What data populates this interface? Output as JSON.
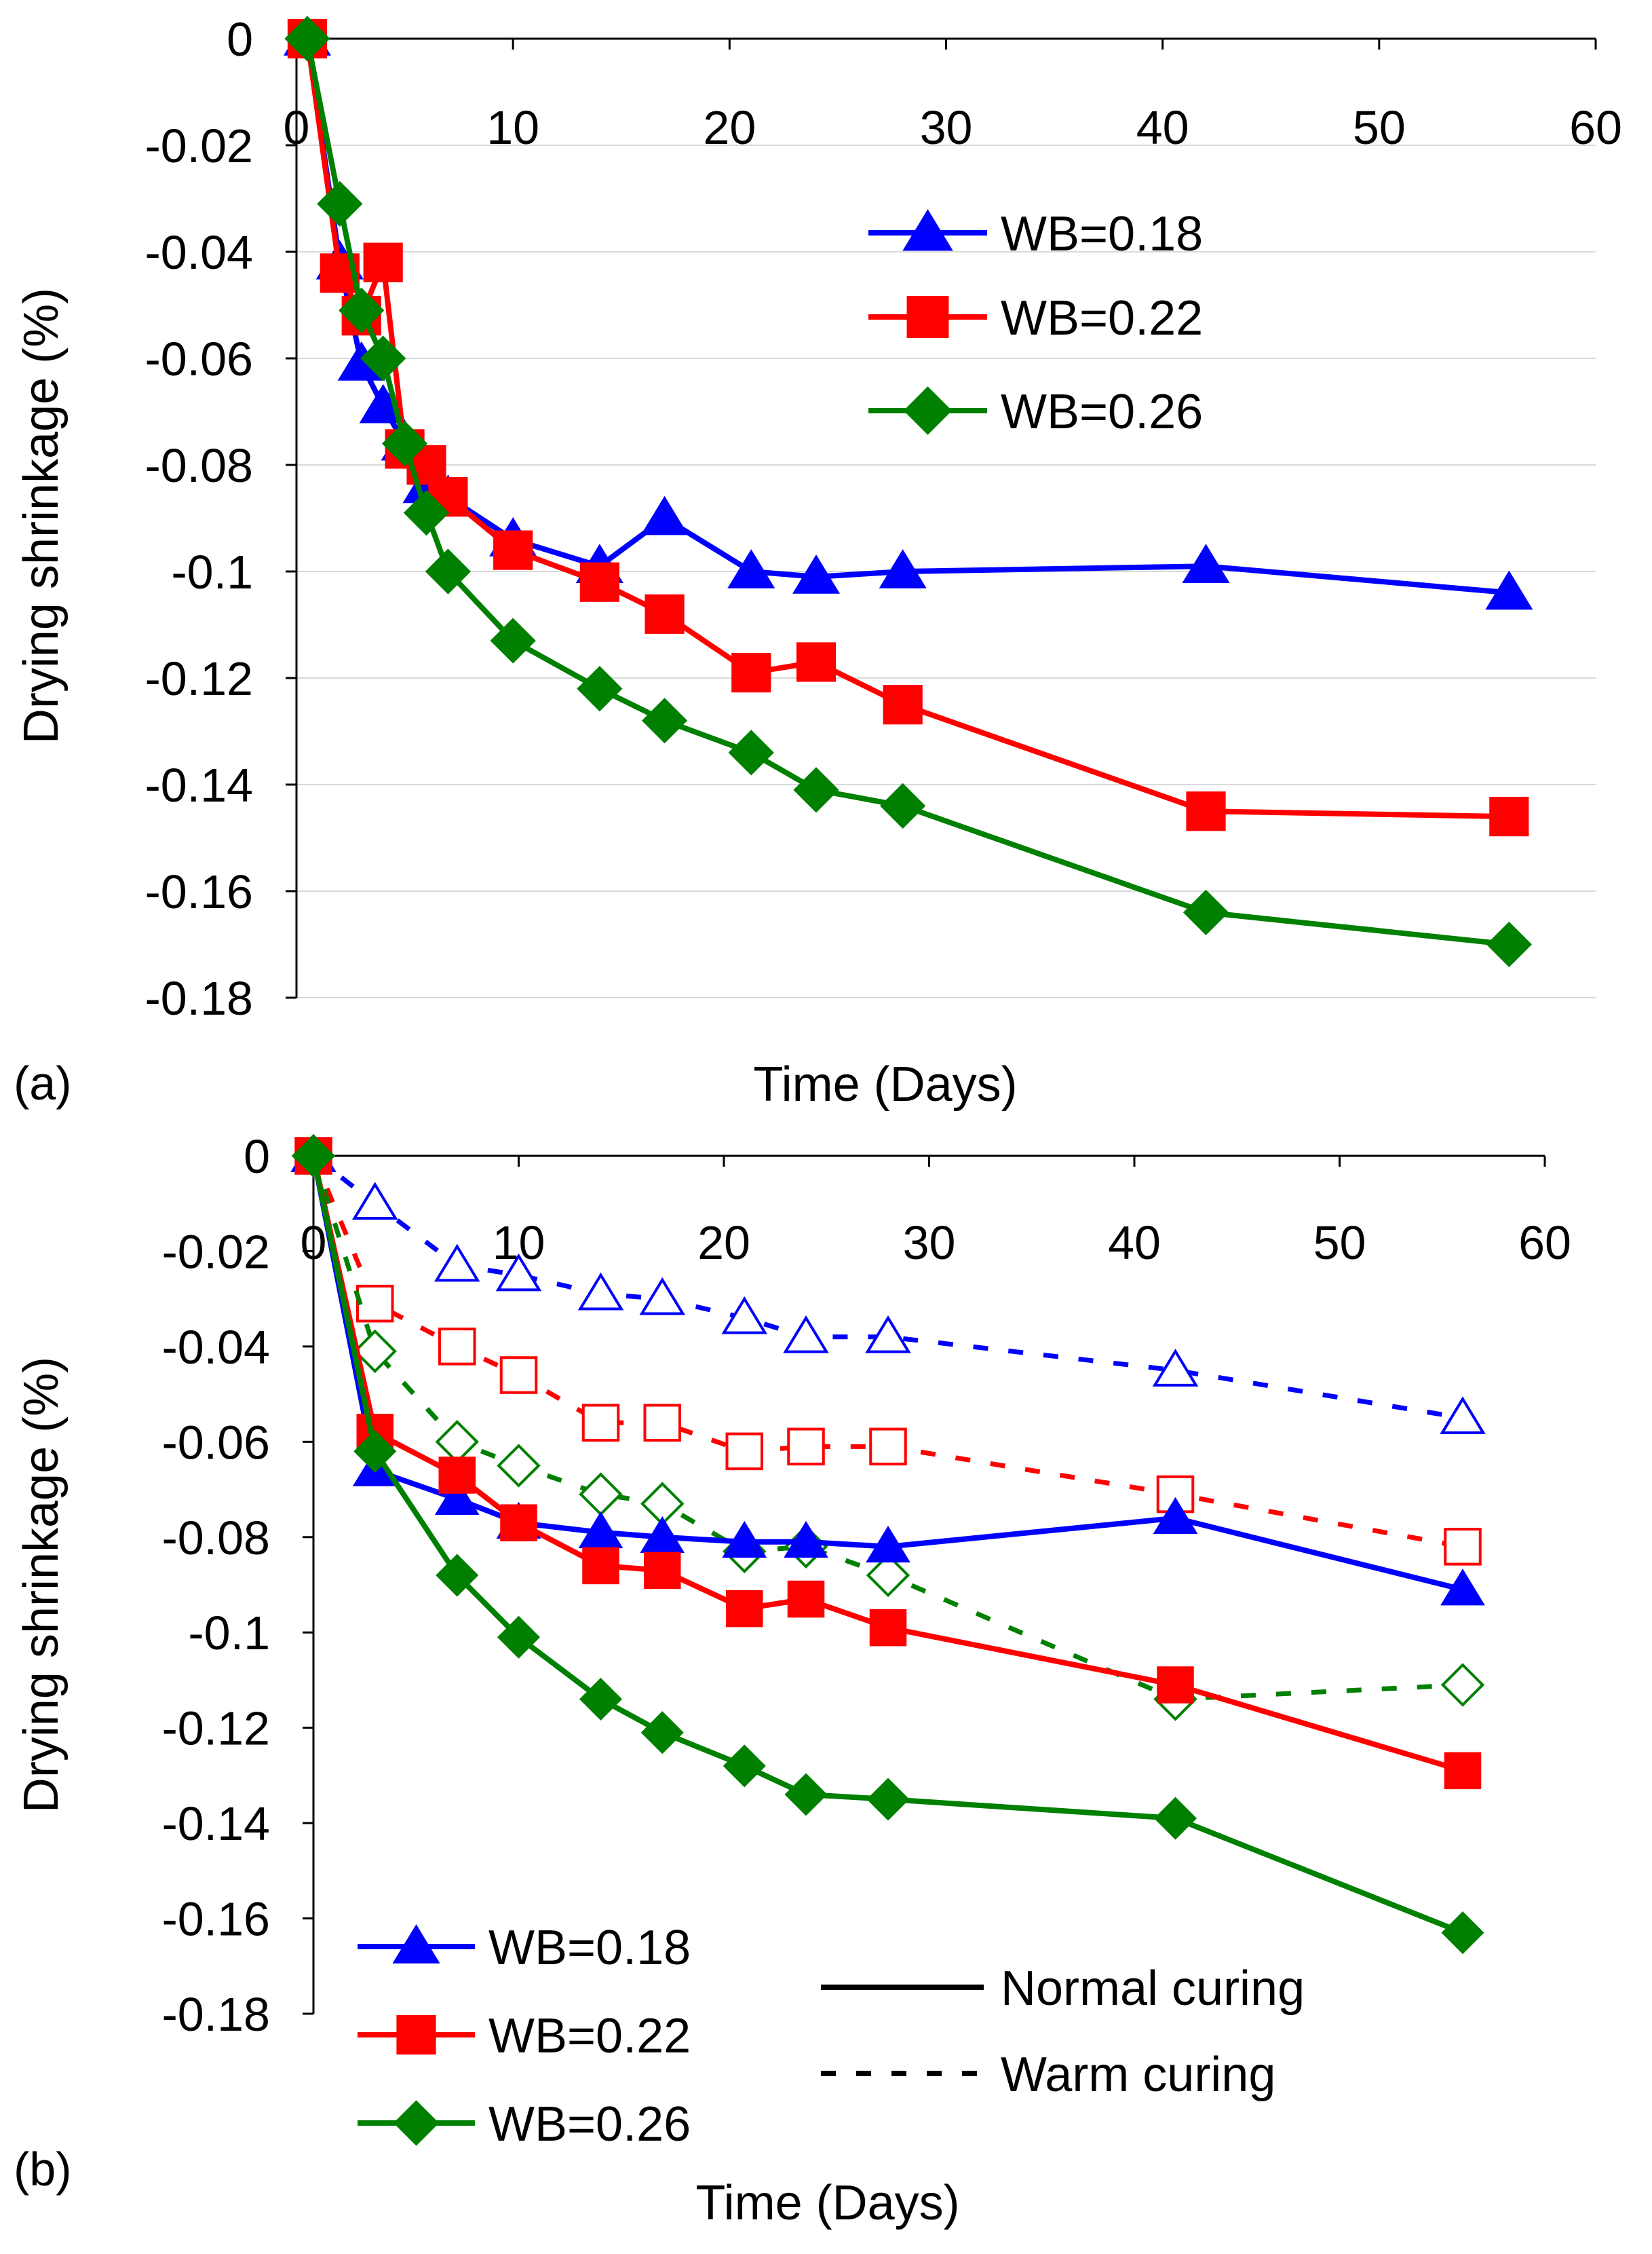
{
  "figure": {
    "colors": {
      "blue": "#0000ff",
      "red": "#ff0000",
      "green": "#008000",
      "grid": "#d9d9d9",
      "axis": "#000000"
    }
  },
  "chart_data": [
    {
      "type": "line",
      "panel_label": "(a)",
      "xlabel": "Time (Days)",
      "ylabel": "Drying shrinkage (%)",
      "xlim": [
        0,
        60
      ],
      "ylim": [
        -0.18,
        0
      ],
      "x_ticks": [
        "0",
        "10",
        "20",
        "30",
        "40",
        "50",
        "60"
      ],
      "y_ticks": [
        "0",
        "-0.02",
        "-0.04",
        "-0.06",
        "-0.08",
        "-0.1",
        "-0.12",
        "-0.14",
        "-0.16",
        "-0.18"
      ],
      "grid": "horizontal",
      "legend": {
        "position": "top-right",
        "entries": [
          "WB=0.18",
          "WB=0.22",
          "WB=0.26"
        ]
      },
      "series": [
        {
          "name": "WB=0.18",
          "color": "#0000ff",
          "marker": "triangle",
          "filled": true,
          "dash": "solid",
          "x": [
            0.5,
            2,
            3,
            4,
            5,
            6,
            7,
            10,
            14,
            17,
            21,
            24,
            28,
            42,
            56
          ],
          "y": [
            0,
            -0.042,
            -0.061,
            -0.069,
            -0.076,
            -0.084,
            -0.086,
            -0.094,
            -0.099,
            -0.09,
            -0.1,
            -0.101,
            -0.1,
            -0.099,
            -0.104
          ]
        },
        {
          "name": "WB=0.22",
          "color": "#ff0000",
          "marker": "square",
          "filled": true,
          "dash": "solid",
          "x": [
            0.5,
            2,
            3,
            4,
            5,
            6,
            7,
            10,
            14,
            17,
            21,
            24,
            28,
            42,
            56
          ],
          "y": [
            0,
            -0.044,
            -0.052,
            -0.042,
            -0.077,
            -0.08,
            -0.086,
            -0.096,
            -0.102,
            -0.108,
            -0.119,
            -0.117,
            -0.125,
            -0.145,
            -0.146
          ]
        },
        {
          "name": "WB=0.26",
          "color": "#008000",
          "marker": "diamond",
          "filled": true,
          "dash": "solid",
          "x": [
            0.5,
            2,
            3,
            4,
            5,
            6,
            7,
            10,
            14,
            17,
            21,
            24,
            28,
            42,
            56
          ],
          "y": [
            0,
            -0.031,
            -0.051,
            -0.06,
            -0.076,
            -0.089,
            -0.1,
            -0.113,
            -0.122,
            -0.128,
            -0.134,
            -0.141,
            -0.144,
            -0.164,
            -0.17
          ]
        }
      ]
    },
    {
      "type": "line",
      "panel_label": "(b)",
      "xlabel": "Time (Days)",
      "ylabel": "Drying shrinkage (%)",
      "xlim": [
        0,
        60
      ],
      "ylim": [
        -0.18,
        0
      ],
      "x_ticks": [
        "0",
        "10",
        "20",
        "30",
        "40",
        "50",
        "60"
      ],
      "y_ticks": [
        "0",
        "-0.02",
        "-0.04",
        "-0.06",
        "-0.08",
        "-0.1",
        "-0.12",
        "-0.14",
        "-0.16",
        "-0.18"
      ],
      "grid": "none",
      "legend": {
        "position": "bottom-left",
        "entries": [
          "WB=0.18",
          "WB=0.22",
          "WB=0.26"
        ]
      },
      "line_style_legend": {
        "position": "bottom-right",
        "entries": [
          {
            "label": "Normal curing",
            "dash": "solid"
          },
          {
            "label": "Warm curing",
            "dash": "dashed"
          }
        ]
      },
      "series": [
        {
          "name": "WB=0.18",
          "curing": "Normal curing",
          "color": "#0000ff",
          "marker": "triangle",
          "filled": true,
          "dash": "solid",
          "x": [
            0,
            3,
            7,
            10,
            14,
            17,
            21,
            24,
            28,
            42,
            56
          ],
          "y": [
            0,
            -0.066,
            -0.072,
            -0.077,
            -0.079,
            -0.08,
            -0.081,
            -0.081,
            -0.082,
            -0.076,
            -0.091
          ]
        },
        {
          "name": "WB=0.22",
          "curing": "Normal curing",
          "color": "#ff0000",
          "marker": "square",
          "filled": true,
          "dash": "solid",
          "x": [
            0,
            3,
            7,
            10,
            14,
            17,
            21,
            24,
            28,
            42,
            56
          ],
          "y": [
            0,
            -0.058,
            -0.067,
            -0.077,
            -0.086,
            -0.087,
            -0.095,
            -0.093,
            -0.099,
            -0.111,
            -0.129
          ]
        },
        {
          "name": "WB=0.26",
          "curing": "Normal curing",
          "color": "#008000",
          "marker": "diamond",
          "filled": true,
          "dash": "solid",
          "x": [
            0,
            3,
            7,
            10,
            14,
            17,
            21,
            24,
            28,
            42,
            56
          ],
          "y": [
            0,
            -0.062,
            -0.088,
            -0.101,
            -0.114,
            -0.121,
            -0.128,
            -0.134,
            -0.135,
            -0.139,
            -0.163
          ]
        },
        {
          "name": "WB=0.18",
          "curing": "Warm curing",
          "color": "#0000ff",
          "marker": "triangle",
          "filled": false,
          "dash": "dashed",
          "x": [
            0,
            3,
            7,
            10,
            14,
            17,
            21,
            24,
            28,
            42,
            56
          ],
          "y": [
            0,
            -0.01,
            -0.023,
            -0.025,
            -0.029,
            -0.03,
            -0.034,
            -0.038,
            -0.038,
            -0.045,
            -0.055
          ]
        },
        {
          "name": "WB=0.22",
          "curing": "Warm curing",
          "color": "#ff0000",
          "marker": "square",
          "filled": false,
          "dash": "dashed",
          "x": [
            0,
            3,
            7,
            10,
            14,
            17,
            21,
            24,
            28,
            42,
            56
          ],
          "y": [
            0,
            -0.031,
            -0.04,
            -0.046,
            -0.056,
            -0.056,
            -0.062,
            -0.061,
            -0.061,
            -0.071,
            -0.082
          ]
        },
        {
          "name": "WB=0.26",
          "curing": "Warm curing",
          "color": "#008000",
          "marker": "diamond",
          "filled": false,
          "dash": "dashed",
          "x": [
            0,
            3,
            7,
            10,
            14,
            17,
            21,
            24,
            28,
            42,
            56
          ],
          "y": [
            0,
            -0.041,
            -0.06,
            -0.065,
            -0.071,
            -0.073,
            -0.083,
            -0.082,
            -0.088,
            -0.114,
            -0.111
          ]
        }
      ]
    }
  ]
}
